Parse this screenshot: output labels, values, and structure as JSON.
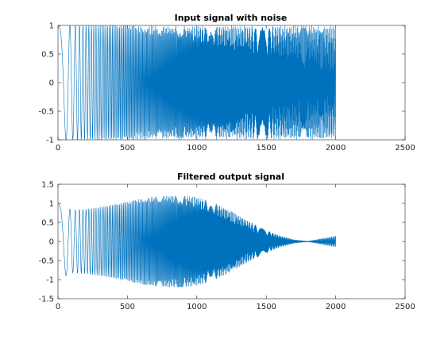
{
  "chart_data": [
    {
      "type": "line",
      "title": "Input signal with noise",
      "xlabel": "",
      "ylabel": "",
      "xlim": [
        0,
        2500
      ],
      "ylim": [
        -1,
        1
      ],
      "x_ticks": [
        0,
        500,
        1000,
        1500,
        2000,
        2500
      ],
      "y_ticks": [
        -1,
        -0.5,
        0,
        0.5,
        1
      ],
      "x_tick_labels": [
        "0",
        "500",
        "1000",
        "1500",
        "2000",
        "2500"
      ],
      "y_tick_labels": [
        "-1",
        "-0.5",
        "0",
        "0.5",
        "1"
      ],
      "grid": false,
      "series": [
        {
          "color": "#0072BD",
          "samples": 2000,
          "x_range": [
            1,
            2000
          ],
          "envelope_max": 1,
          "envelope_min": -1,
          "description_values": [
            [
              0,
              1
            ],
            [
              50,
              -1
            ],
            [
              100,
              1
            ],
            [
              200,
              0.99
            ],
            [
              500,
              -0.99
            ],
            [
              1000,
              1
            ],
            [
              1500,
              -1
            ],
            [
              2000,
              0.95
            ]
          ]
        }
      ]
    },
    {
      "type": "line",
      "title": "Filtered output signal",
      "xlabel": "",
      "ylabel": "",
      "xlim": [
        0,
        2500
      ],
      "ylim": [
        -1.5,
        1.5
      ],
      "x_ticks": [
        0,
        500,
        1000,
        1500,
        2000,
        2500
      ],
      "y_ticks": [
        -1.5,
        -1,
        -0.5,
        0,
        0.5,
        1,
        1.5
      ],
      "x_tick_labels": [
        "0",
        "500",
        "1000",
        "1500",
        "2000",
        "2500"
      ],
      "y_tick_labels": [
        "-1.5",
        "-1",
        "-0.5",
        "0",
        "0.5",
        "1",
        "1.5"
      ],
      "grid": false,
      "series": [
        {
          "color": "#0072BD",
          "samples": 2000,
          "x_range": [
            1,
            2000
          ],
          "envelope": [
            [
              0,
              1.0
            ],
            [
              100,
              0.82
            ],
            [
              200,
              0.85
            ],
            [
              300,
              0.9
            ],
            [
              400,
              0.97
            ],
            [
              500,
              1.04
            ],
            [
              600,
              1.12
            ],
            [
              700,
              1.18
            ],
            [
              800,
              1.2
            ],
            [
              900,
              1.2
            ],
            [
              1000,
              1.16
            ],
            [
              1100,
              1.05
            ],
            [
              1200,
              0.88
            ],
            [
              1300,
              0.68
            ],
            [
              1400,
              0.48
            ],
            [
              1500,
              0.3
            ],
            [
              1600,
              0.15
            ],
            [
              1700,
              0.05
            ],
            [
              1800,
              0.01
            ],
            [
              1900,
              0.08
            ],
            [
              2000,
              0.15
            ]
          ]
        }
      ]
    }
  ]
}
